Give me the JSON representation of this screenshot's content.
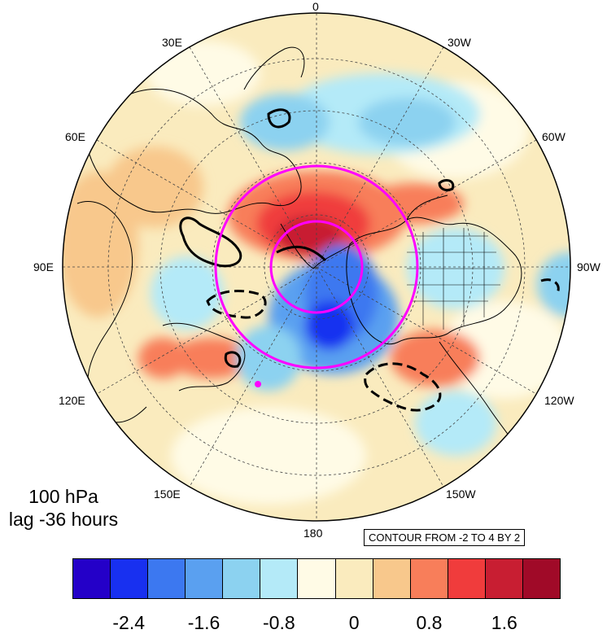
{
  "panel": {
    "level": "100 hPa",
    "lag": "lag -36 hours"
  },
  "contour_info": "CONTOUR FROM -2 TO 4 BY 2",
  "longitude_labels": {
    "top": "0",
    "bottom": "180",
    "lon30e": "30E",
    "lon30w": "30W",
    "lon60e": "60E",
    "lon60w": "60W",
    "lon90e": "90E",
    "lon90w": "90W",
    "lon120e": "120E",
    "lon120w": "120W",
    "lon150e": "150E",
    "lon150w": "150W"
  },
  "colorbar": {
    "colors": [
      "#2400c8",
      "#1830f0",
      "#3c78f0",
      "#5aa0f0",
      "#8cd2f0",
      "#b4eaf8",
      "#fffbe6",
      "#faebbe",
      "#f8c88c",
      "#f87e5a",
      "#f03c3c",
      "#c81e32",
      "#a00a28"
    ],
    "labels": [
      "-2.4",
      "-1.6",
      "-0.8",
      "0",
      "0.8",
      "1.6"
    ]
  },
  "colors": {
    "magenta_circles": "#ff00ff",
    "land_outline": "#000000"
  }
}
